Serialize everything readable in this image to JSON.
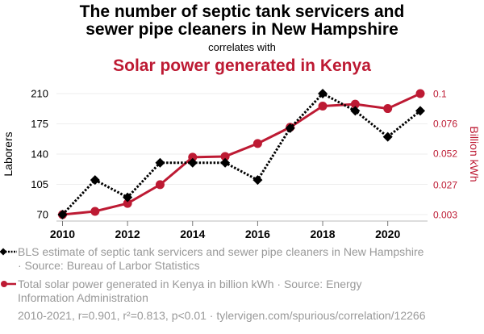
{
  "header": {
    "title_line1": "The number of septic tank servicers and",
    "title_line2": "sewer pipe cleaners in New Hampshire",
    "subtitle": "correlates with",
    "title2": "Solar power generated in Kenya"
  },
  "colors": {
    "series1": "#000000",
    "series2": "#bd1a33",
    "grid": "#eeeeee",
    "axis": "#bbbbbb",
    "legend_text": "#999999"
  },
  "chart_data": {
    "type": "line",
    "title": "The number of septic tank servicers and sewer pipe cleaners in New Hampshire correlates with Solar power generated in Kenya",
    "x": [
      2010,
      2011,
      2012,
      2013,
      2014,
      2015,
      2016,
      2017,
      2018,
      2019,
      2020,
      2021
    ],
    "xlabel": "",
    "xticks": [
      "2010",
      "2012",
      "2014",
      "2016",
      "2018",
      "2020"
    ],
    "xtick_values": [
      2010,
      2012,
      2014,
      2016,
      2018,
      2020
    ],
    "xlim": [
      2009.8,
      2021.3
    ],
    "grid": true,
    "legend_position": "bottom",
    "y_left": {
      "label": "Laborers",
      "ticks": [
        "70",
        "105",
        "140",
        "175",
        "210"
      ],
      "tick_values": [
        70,
        105,
        140,
        175,
        210
      ],
      "ylim": [
        70,
        210
      ]
    },
    "y_right": {
      "label": "Billion kWh",
      "ticks": [
        "0.003",
        "0.027",
        "0.052",
        "0.076",
        "0.1"
      ],
      "tick_values": [
        0.003,
        0.027,
        0.052,
        0.076,
        0.1
      ],
      "ylim": [
        0.003,
        0.1
      ]
    },
    "series": [
      {
        "name": "BLS estimate of septic tank servicers and sewer pipe cleaners in New Hampshire · Source: Bureau of Larbor Statistics",
        "axis": "left",
        "style": "dotted-diamond",
        "values": [
          70,
          110,
          90,
          130,
          130,
          130,
          110,
          170,
          210,
          190,
          160,
          190
        ]
      },
      {
        "name": "Total solar power generated in Kenya in billion kWh · Source: Energy Information Administration",
        "axis": "right",
        "style": "solid-circle",
        "values": [
          0.003,
          0.0056,
          0.012,
          0.027,
          0.049,
          0.0496,
          0.06,
          0.073,
          0.09,
          0.0915,
          0.088,
          0.1
        ]
      }
    ]
  },
  "legend": {
    "item1_line1": "BLS estimate of septic tank servicers and sewer pipe cleaners in New Hampshire",
    "item1_line2": "· Source: Bureau of Larbor Statistics",
    "item2_line1": "Total solar power generated in Kenya in billion kWh · Source: Energy",
    "item2_line2": "Information Administration"
  },
  "footer": {
    "stats": "2010-2021, r=0.901, r²=0.813, p<0.01 · tylervigen.com/spurious/correlation/12266"
  }
}
